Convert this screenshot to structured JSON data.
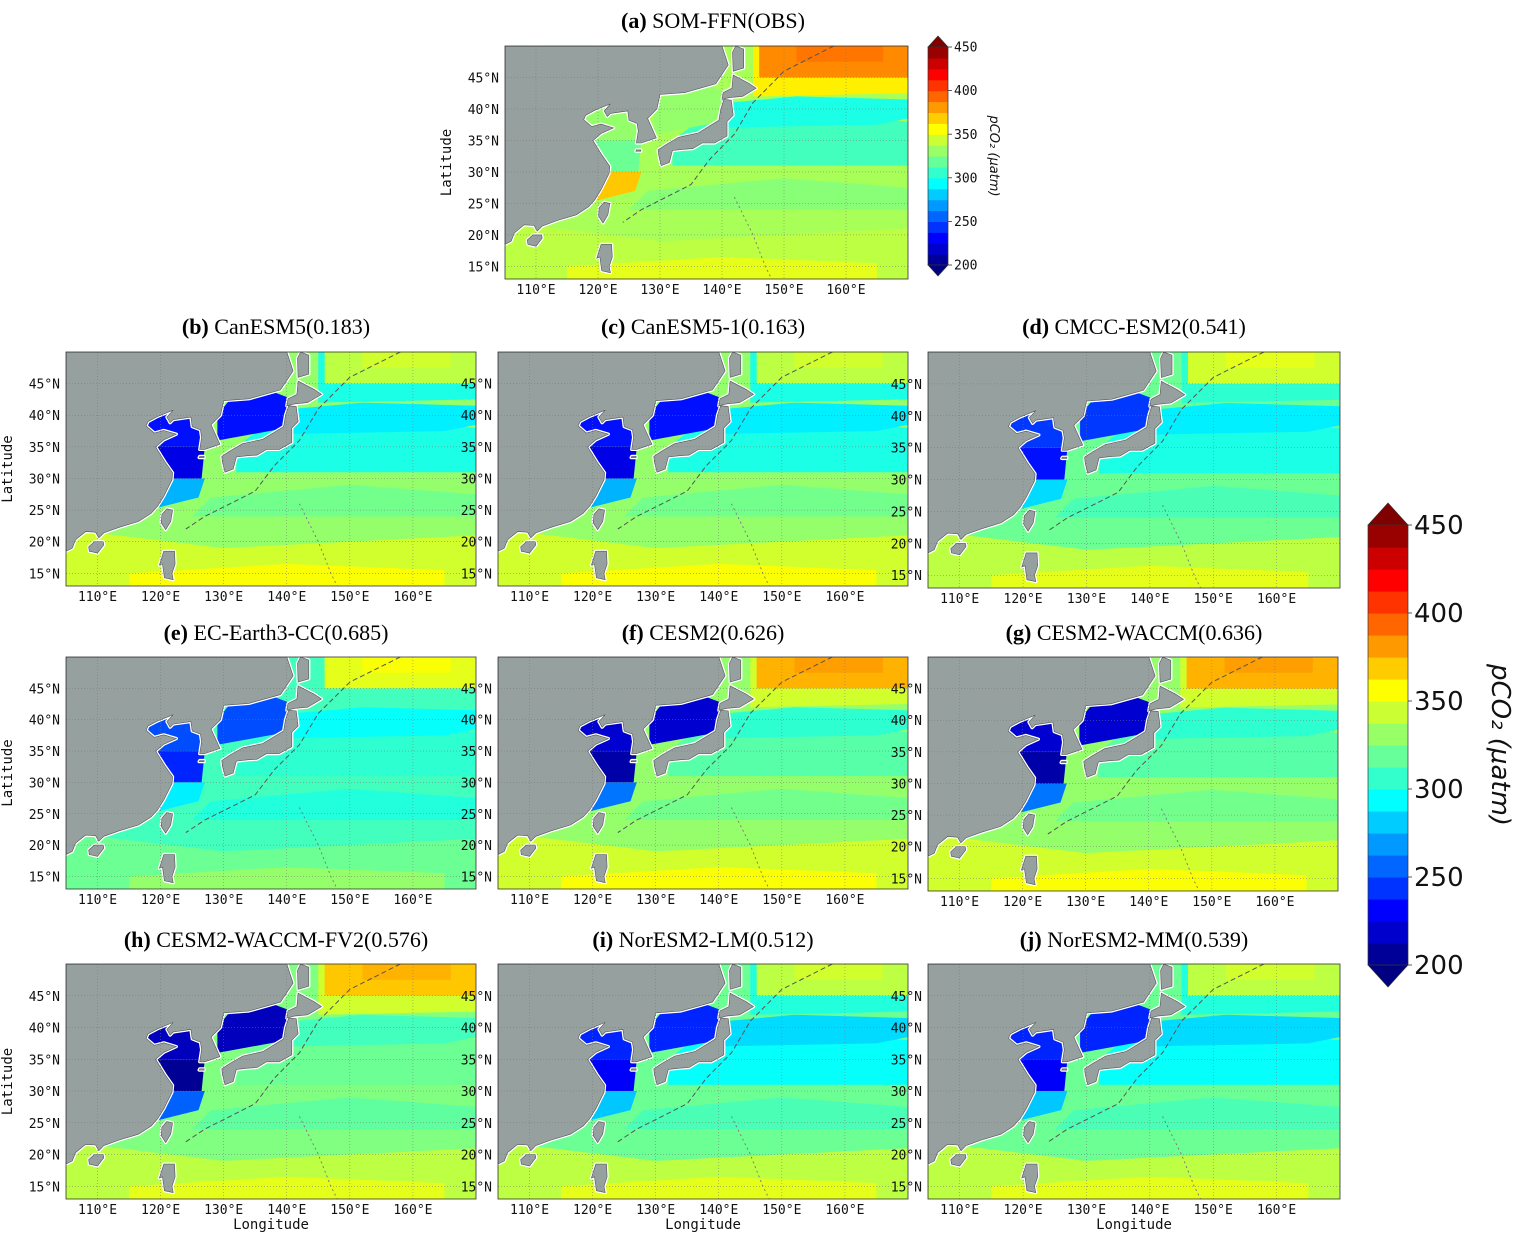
{
  "figure": {
    "panels": [
      {
        "id": "a",
        "letter": "(a)",
        "name": "SOM-FFN(OBS)",
        "score": "",
        "map_key": "obs"
      },
      {
        "id": "b",
        "letter": "(b)",
        "name": "CanESM5",
        "score": "(0.183)",
        "map_key": "strong_low"
      },
      {
        "id": "c",
        "letter": "(c)",
        "name": "CanESM5-1",
        "score": "(0.163)",
        "map_key": "strong_low"
      },
      {
        "id": "d",
        "letter": "(d)",
        "name": "CMCC-ESM2",
        "score": "(0.541)",
        "map_key": "mid"
      },
      {
        "id": "e",
        "letter": "(e)",
        "name": "EC-Earth3-CC",
        "score": "(0.685)",
        "map_key": "ec"
      },
      {
        "id": "f",
        "letter": "(f)",
        "name": "CESM2",
        "score": "(0.626)",
        "map_key": "cesm"
      },
      {
        "id": "g",
        "letter": "(g)",
        "name": "CESM2-WACCM",
        "score": "(0.636)",
        "map_key": "cesm"
      },
      {
        "id": "h",
        "letter": "(h)",
        "name": "CESM2-WACCM-FV2",
        "score": "(0.576)",
        "map_key": "cesm_fv2"
      },
      {
        "id": "i",
        "letter": "(i)",
        "name": "NorESM2-LM",
        "score": "(0.512)",
        "map_key": "nor"
      },
      {
        "id": "j",
        "letter": "(j)",
        "name": "NorESM2-MM",
        "score": "(0.539)",
        "map_key": "nor"
      }
    ],
    "lat_ticks": [
      "15°N",
      "20°N",
      "25°N",
      "30°N",
      "35°N",
      "40°N",
      "45°N"
    ],
    "lon_ticks": [
      "110°E",
      "120°E",
      "130°E",
      "140°E",
      "150°E",
      "160°E"
    ],
    "lat_values": [
      15,
      20,
      25,
      30,
      35,
      40,
      45
    ],
    "lon_values": [
      110,
      120,
      130,
      140,
      150,
      160
    ],
    "extent": {
      "lon": [
        105,
        170
      ],
      "lat": [
        13,
        50
      ]
    },
    "ylabel": "Latitude",
    "xlabel": "Longitude",
    "colorbar": {
      "label": "pCO₂ (μatm)",
      "ticks": [
        "200",
        "250",
        "300",
        "350",
        "400",
        "450"
      ],
      "tick_values": [
        200,
        250,
        300,
        350,
        400,
        450
      ],
      "range": [
        200,
        450
      ],
      "extend": "both",
      "colormap": "jet"
    },
    "colors": {
      "land": "#95a09f",
      "coast": "#ffffff",
      "background": "#ffffff"
    }
  },
  "chart_data": {
    "type": "heatmap",
    "variable": "pCO₂",
    "units": "μatm",
    "x_range_deg": [
      105,
      170
    ],
    "y_range_deg": [
      13,
      50
    ],
    "panels": [
      {
        "panel": "(a)",
        "name": "SOM-FFN(OBS)",
        "approx_values": {
          "north_east": 385,
          "subpolar": 360,
          "kuroshio_ext": 300,
          "subtropics": 335,
          "low_lat": 340,
          "marginal_seas": 335
        }
      },
      {
        "panel": "(b)",
        "name": "CanESM5",
        "score": 0.183,
        "approx_values": {
          "north_east": 340,
          "subpolar": 300,
          "kuroshio_ext": 290,
          "subtropics": 330,
          "low_lat": 345,
          "marginal_seas": 235
        }
      },
      {
        "panel": "(c)",
        "name": "CanESM5-1",
        "score": 0.163,
        "approx_values": {
          "north_east": 345,
          "subpolar": 300,
          "kuroshio_ext": 285,
          "subtropics": 330,
          "low_lat": 345,
          "marginal_seas": 235
        }
      },
      {
        "panel": "(d)",
        "name": "CMCC-ESM2",
        "score": 0.541,
        "approx_values": {
          "north_east": 345,
          "subpolar": 305,
          "kuroshio_ext": 290,
          "subtropics": 320,
          "low_lat": 340,
          "marginal_seas": 245
        }
      },
      {
        "panel": "(e)",
        "name": "EC-Earth3-CC",
        "score": 0.685,
        "approx_values": {
          "north_east": 350,
          "subpolar": 310,
          "kuroshio_ext": 295,
          "subtropics": 310,
          "low_lat": 320,
          "marginal_seas": 250
        }
      },
      {
        "panel": "(f)",
        "name": "CESM2",
        "score": 0.626,
        "approx_values": {
          "north_east": 375,
          "subpolar": 345,
          "kuroshio_ext": 305,
          "subtropics": 330,
          "low_lat": 345,
          "marginal_seas": 220
        }
      },
      {
        "panel": "(g)",
        "name": "CESM2-WACCM",
        "score": 0.636,
        "approx_values": {
          "north_east": 375,
          "subpolar": 345,
          "kuroshio_ext": 310,
          "subtropics": 330,
          "low_lat": 345,
          "marginal_seas": 220
        }
      },
      {
        "panel": "(h)",
        "name": "CESM2-WACCM-FV2",
        "score": 0.576,
        "approx_values": {
          "north_east": 370,
          "subpolar": 345,
          "kuroshio_ext": 310,
          "subtropics": 325,
          "low_lat": 340,
          "marginal_seas": 215
        }
      },
      {
        "panel": "(i)",
        "name": "NorESM2-LM",
        "score": 0.512,
        "approx_values": {
          "north_east": 335,
          "subpolar": 300,
          "kuroshio_ext": 285,
          "subtropics": 320,
          "low_lat": 340,
          "marginal_seas": 240
        }
      },
      {
        "panel": "(j)",
        "name": "NorESM2-MM",
        "score": 0.539,
        "approx_values": {
          "north_east": 345,
          "subpolar": 305,
          "kuroshio_ext": 285,
          "subtropics": 320,
          "low_lat": 340,
          "marginal_seas": 240
        }
      }
    ]
  }
}
